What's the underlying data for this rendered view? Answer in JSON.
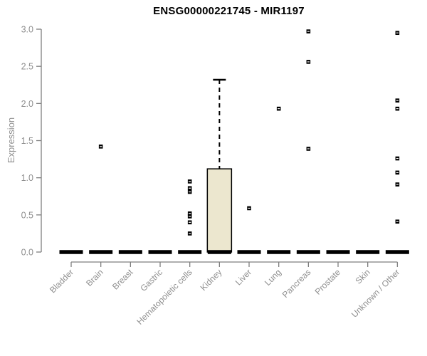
{
  "chart_data": {
    "type": "boxplot",
    "title": "ENSG00000221745 - MIR1197",
    "ylabel": "Expression",
    "xlabel": "",
    "ylim": [
      0,
      3
    ],
    "yticks": [
      0,
      0.5,
      1,
      1.5,
      2,
      2.5,
      3
    ],
    "ytick_labels": [
      "0.0",
      "0.5",
      "1.0",
      "1.5",
      "2.0",
      "2.5",
      "3.0"
    ],
    "grid": "off",
    "legend": "none",
    "x_labels_rotation_deg": 45,
    "point_glyph": "filled-square",
    "categories": [
      "Bladder",
      "Brain",
      "Breast",
      "Gastric",
      "Hematopoietic cells",
      "Kidney",
      "Liver",
      "Lung",
      "Pancreas",
      "Prostate",
      "Skin",
      "Unknown / Other"
    ],
    "boxes": [
      {
        "category": "Bladder",
        "median": 0,
        "q1": 0,
        "q3": 0,
        "whisker_low": 0,
        "whisker_high": 0,
        "points": []
      },
      {
        "category": "Brain",
        "median": 0,
        "q1": 0,
        "q3": 0,
        "whisker_low": 0,
        "whisker_high": 0,
        "points": [
          1.42
        ]
      },
      {
        "category": "Breast",
        "median": 0,
        "q1": 0,
        "q3": 0,
        "whisker_low": 0,
        "whisker_high": 0,
        "points": []
      },
      {
        "category": "Gastric",
        "median": 0,
        "q1": 0,
        "q3": 0,
        "whisker_low": 0,
        "whisker_high": 0,
        "points": []
      },
      {
        "category": "Hematopoietic cells",
        "median": 0,
        "q1": 0,
        "q3": 0,
        "whisker_low": 0,
        "whisker_high": 0,
        "points": [
          0.95,
          0.86,
          0.81,
          0.52,
          0.48,
          0.4,
          0.25
        ]
      },
      {
        "category": "Kidney",
        "median": 0,
        "q1": 0,
        "q3": 1.12,
        "whisker_low": 0,
        "whisker_high": 2.32,
        "points": []
      },
      {
        "category": "Liver",
        "median": 0,
        "q1": 0,
        "q3": 0,
        "whisker_low": 0,
        "whisker_high": 0,
        "points": [
          0.59
        ]
      },
      {
        "category": "Lung",
        "median": 0,
        "q1": 0,
        "q3": 0,
        "whisker_low": 0,
        "whisker_high": 0,
        "points": [
          1.93
        ]
      },
      {
        "category": "Pancreas",
        "median": 0,
        "q1": 0,
        "q3": 0,
        "whisker_low": 0,
        "whisker_high": 0,
        "points": [
          2.97,
          2.56,
          1.39
        ]
      },
      {
        "category": "Prostate",
        "median": 0,
        "q1": 0,
        "q3": 0,
        "whisker_low": 0,
        "whisker_high": 0,
        "points": []
      },
      {
        "category": "Skin",
        "median": 0,
        "q1": 0,
        "q3": 0,
        "whisker_low": 0,
        "whisker_high": 0,
        "points": []
      },
      {
        "category": "Unknown / Other",
        "median": 0,
        "q1": 0,
        "q3": 0,
        "whisker_low": 0,
        "whisker_high": 0,
        "points": [
          2.95,
          2.04,
          1.93,
          1.26,
          1.07,
          0.91,
          0.41
        ]
      }
    ],
    "colors": {
      "box_fill": "#ece7cf",
      "box_stroke": "#000000",
      "median": "#000000",
      "point": "#000000",
      "point_center": "#ffffff",
      "axis": "#7f7f7f",
      "tick_label": "#8f8f8f",
      "title": "#000000",
      "background": "#ffffff"
    }
  }
}
